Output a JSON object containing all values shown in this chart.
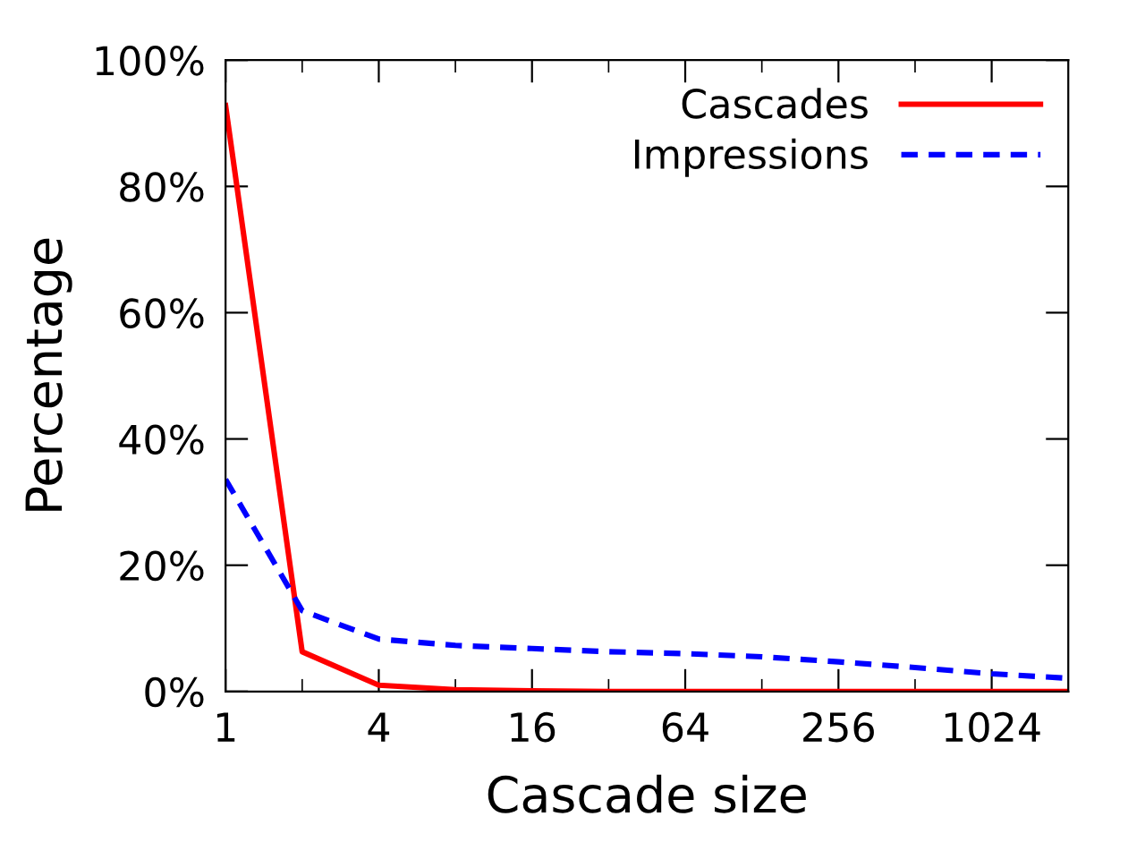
{
  "chart_data": {
    "type": "line",
    "xlabel": "Cascade size",
    "ylabel": "Percentage",
    "x": [
      1,
      2,
      4,
      8,
      16,
      32,
      64,
      128,
      256,
      512,
      1024,
      2048
    ],
    "series": [
      {
        "name": "Cascades",
        "color": "#ff0000",
        "line_style": "solid",
        "values": [
          92.8,
          6.3,
          1.0,
          0.3,
          0.1,
          0,
          0,
          0,
          0,
          0,
          0,
          0
        ]
      },
      {
        "name": "Impressions",
        "color": "#0000ff",
        "line_style": "dashed",
        "values": [
          33.6,
          12.8,
          8.3,
          7.3,
          6.8,
          6.3,
          6.0,
          5.5,
          4.7,
          3.8,
          2.8,
          2.1
        ]
      }
    ],
    "log": "x",
    "xlim": [
      1,
      2048
    ],
    "ylim": [
      0,
      100
    ],
    "xticks": [
      1,
      {
        "value": 2,
        "label": null
      },
      4,
      {
        "value": 8,
        "label": null
      },
      16,
      {
        "value": 32,
        "label": null
      },
      64,
      {
        "value": 128,
        "label": null
      },
      256,
      {
        "value": 512,
        "label": null
      },
      1024
    ],
    "yticks": [
      {
        "value": 0,
        "label": "0%"
      },
      {
        "value": 20,
        "label": "20%"
      },
      {
        "value": 40,
        "label": "40%"
      },
      {
        "value": 60,
        "label": "60%"
      },
      {
        "value": 80,
        "label": "80%"
      },
      {
        "value": 100,
        "label": "100%"
      }
    ],
    "grid": false,
    "legend": "top right"
  }
}
